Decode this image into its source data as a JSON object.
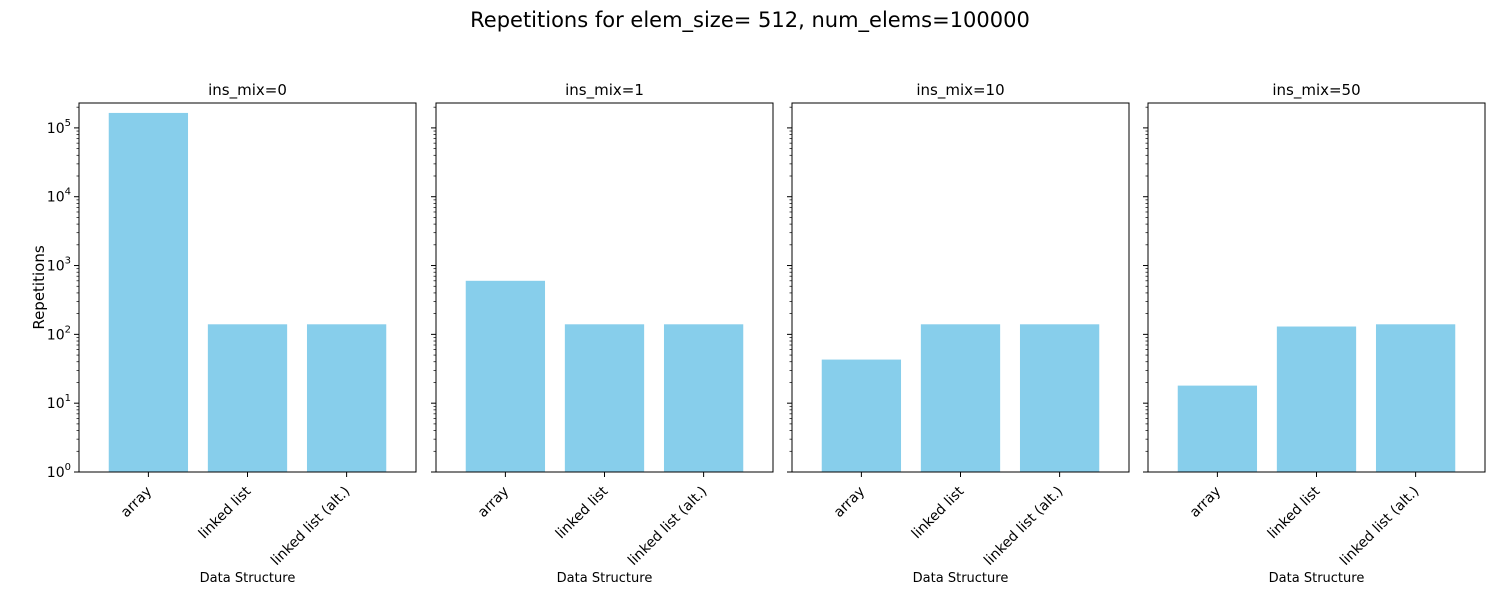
{
  "suptitle": "Repetitions for elem_size= 512, num_elems=100000",
  "chart_data": {
    "type": "bar",
    "scale": "log",
    "ylabel": "Repetitions",
    "ylim": [
      1,
      230000
    ],
    "yticks": [
      {
        "value": 1,
        "base": "10",
        "exp": "0"
      },
      {
        "value": 10,
        "base": "10",
        "exp": "1"
      },
      {
        "value": 100,
        "base": "10",
        "exp": "2"
      },
      {
        "value": 1000,
        "base": "10",
        "exp": "3"
      },
      {
        "value": 10000,
        "base": "10",
        "exp": "4"
      },
      {
        "value": 100000,
        "base": "10",
        "exp": "5"
      }
    ],
    "bar_color": "#87CEEB",
    "grid": false,
    "shared_y": true,
    "categories": [
      "array",
      "linked list",
      "linked list (alt.)"
    ],
    "panels": [
      {
        "title": "ins_mix=0",
        "xlabel": "Data Structure",
        "values": [
          165000,
          140,
          140
        ]
      },
      {
        "title": "ins_mix=1",
        "xlabel": "Data Structure",
        "values": [
          600,
          140,
          140
        ]
      },
      {
        "title": "ins_mix=10",
        "xlabel": "Data Structure",
        "values": [
          43,
          140,
          140
        ]
      },
      {
        "title": "ins_mix=50",
        "xlabel": "Data Structure",
        "values": [
          18,
          130,
          140
        ]
      }
    ]
  }
}
